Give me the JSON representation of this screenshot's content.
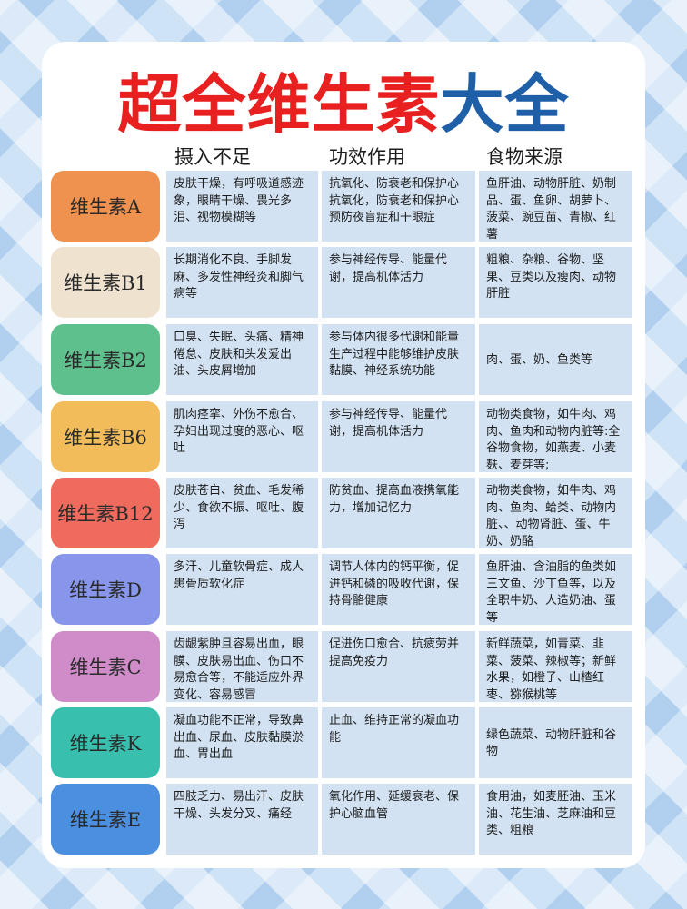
{
  "title": {
    "part1": "超全维生素",
    "part2": "大全"
  },
  "columns": [
    "摄入不足",
    "功效作用",
    "食物来源"
  ],
  "rows": [
    {
      "name": "维生素A",
      "color": "#f0924f",
      "deficiency": "皮肤干燥，有呼吸道感迹象，眼睛干燥、畏光多泪、视物模糊等",
      "effect": "抗氧化、防衰老和保护心抗氧化，防衰老和保护心预防夜盲症和干眼症",
      "food": "鱼肝油、动物肝脏、奶制品、蛋、鱼卵、胡萝卜、菠菜、豌豆苗、青椒、红薯"
    },
    {
      "name": "维生素B1",
      "color": "#efe3cf",
      "deficiency": "长期消化不良、手脚发麻、多发性神经炎和脚气病等",
      "effect": "参与神经传导、能量代谢，提高机体活力",
      "food": "粗粮、杂粮、谷物、坚果、豆类以及瘦肉、动物肝脏"
    },
    {
      "name": "维生素B2",
      "color": "#5dc08d",
      "deficiency": "口臭、失眠、头痛、精神倦怠、皮肤和头发爱出油、头皮屑增加",
      "effect": "参与体内很多代谢和能量生产过程中能够维护皮肤黏膜、神经系统功能",
      "food": "肉、蛋、奶、鱼类等"
    },
    {
      "name": "维生素B6",
      "color": "#f2bc5b",
      "deficiency": "肌肉痉挛、外伤不愈合、孕妇出现过度的恶心、呕吐",
      "effect": "参与神经传导、能量代谢，提高机体活力",
      "food": "动物类食物，如牛肉、鸡肉、鱼肉和动物内脏等:全谷物食物，如燕麦、小麦麸、麦芽等;"
    },
    {
      "name": "维生素B12",
      "color": "#ee6b5d",
      "deficiency": "皮肤苍白、贫血、毛发稀少、食欲不振、呕吐、腹泻",
      "effect": "防贫血、提高血液携氧能力，增加记忆力",
      "food": "动物类食物，如牛肉、鸡肉、鱼肉、蛤类、动物内脏、、动物肾脏、蛋、牛奶、奶酪"
    },
    {
      "name": "维生素D",
      "color": "#8795ea",
      "deficiency": "多汗、儿童软骨症、成人患骨质软化症",
      "effect": "调节人体内的钙平衡，促进钙和磷的吸收代谢，保持骨骼健康",
      "food": "鱼肝油、含油脂的鱼类如三文鱼、沙丁鱼等，以及全职牛奶、人造奶油、蛋等"
    },
    {
      "name": "维生素C",
      "color": "#cf8cc9",
      "deficiency": "齿龈紫肿且容易出血，眼膜、皮肤易出血、伤口不易愈合等，不能适应外界变化、容易感冒",
      "effect": "促进伤口愈合、抗疲劳并提高免疫力",
      "food": "新鲜蔬菜，如青菜、韭菜、菠菜、辣椒等；新鲜水果，如橙子、山楂红枣、猕猴桃等"
    },
    {
      "name": "维生素K",
      "color": "#38bfae",
      "deficiency": "凝血功能不正常，导致鼻出血、尿血、皮肤黏膜淤血、胃出血",
      "effect": "止血、维持正常的凝血功能",
      "food": "绿色蔬菜、动物肝脏和谷物"
    },
    {
      "name": "维生素E",
      "color": "#4b8fe0",
      "deficiency": "四肢乏力、易出汗、皮肤干燥、头发分叉、痛经",
      "effect": "氧化作用、延缓衰老、保护心脑血管",
      "food": "食用油，如麦胚油、玉米油、花生油、芝麻油和豆类、粗粮"
    }
  ]
}
